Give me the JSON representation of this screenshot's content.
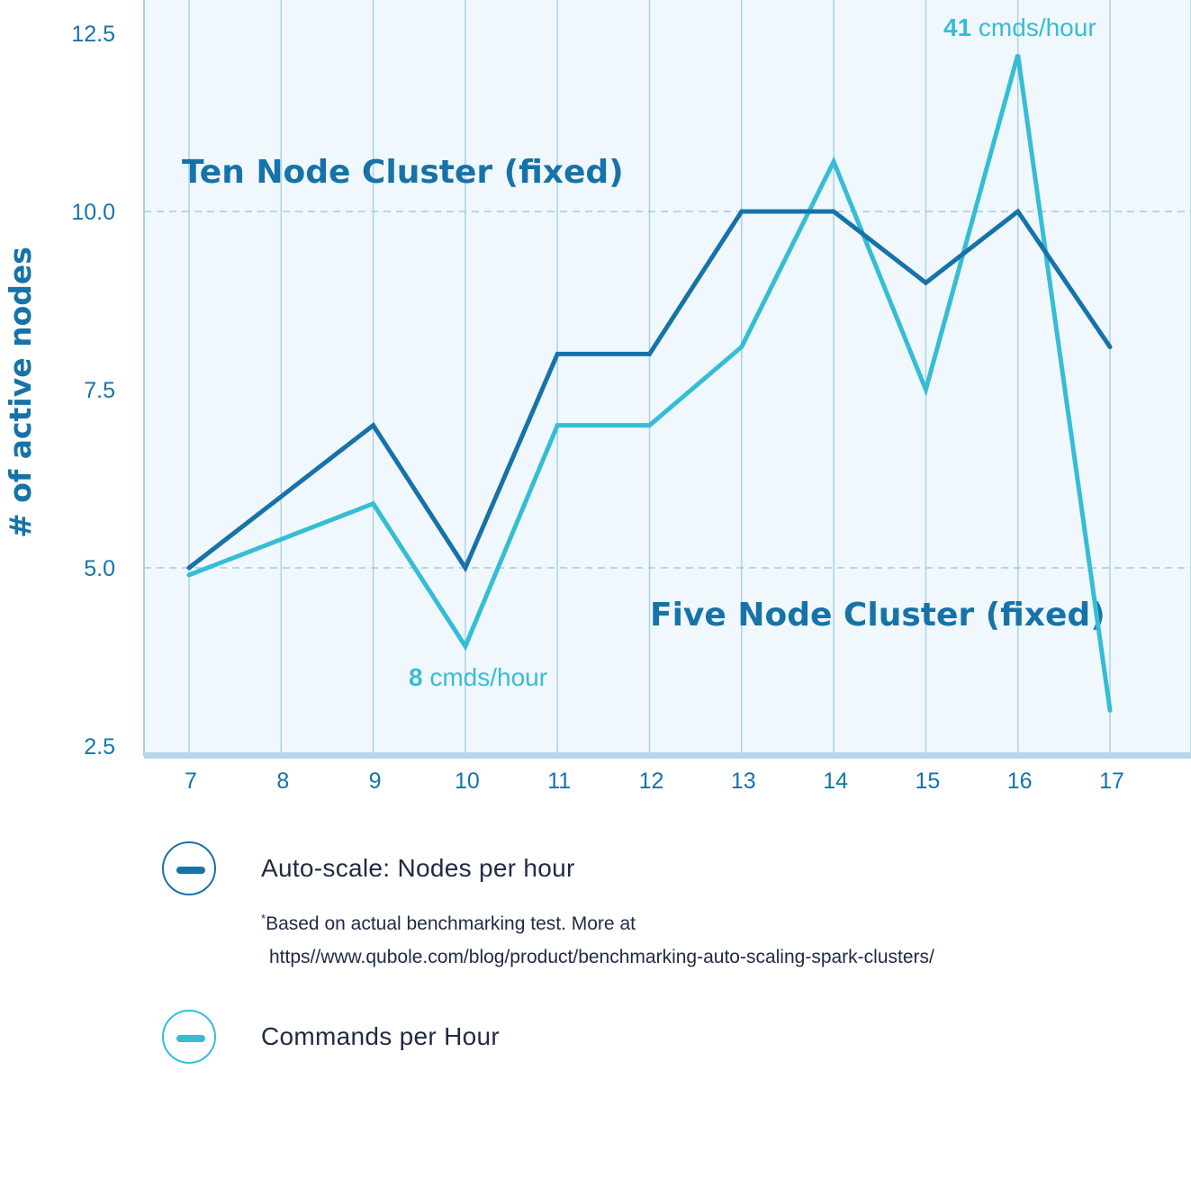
{
  "chart_data": {
    "type": "line",
    "ylabel": "# of active nodes",
    "xlabel": "",
    "title": "",
    "x": [
      7,
      8,
      9,
      10,
      11,
      12,
      13,
      14,
      15,
      16,
      17
    ],
    "x_tick_labels": [
      "7",
      "8",
      "9",
      "10",
      "11",
      "12",
      "13",
      "14",
      "15",
      "16",
      "17"
    ],
    "y_ticks": [
      2.5,
      5.0,
      7.5,
      10.0,
      12.5
    ],
    "y_tick_labels": [
      "2.5",
      "5.0",
      "7.5",
      "10.0",
      "12.5"
    ],
    "ylim": [
      2.4,
      12.9
    ],
    "series": [
      {
        "name": "Auto-scale: Nodes per hour",
        "color": "#1673a9",
        "values": [
          5.0,
          6.0,
          7.0,
          5.0,
          8.0,
          8.0,
          10.0,
          10.0,
          9.0,
          10.0,
          8.1
        ]
      },
      {
        "name": "Commands per Hour",
        "color": "#35bdd6",
        "values": [
          4.9,
          5.4,
          5.9,
          3.9,
          7.0,
          7.0,
          8.1,
          10.7,
          7.5,
          12.2,
          3.0
        ]
      }
    ],
    "bands": [
      {
        "label": "Ten Node Cluster (fixed)",
        "y": 10.0
      },
      {
        "label": "Five Node Cluster (fixed)",
        "y": 5.0
      }
    ],
    "annotations": [
      {
        "number": "41",
        "text": " cmds/hour",
        "series": "Commands per Hour",
        "x": 16
      },
      {
        "number": "8",
        "text": " cmds/hour",
        "series": "Commands per Hour",
        "x": 10
      }
    ],
    "grid": true,
    "legend_position": "bottom"
  },
  "legend": {
    "items": [
      {
        "label": "Auto-scale: Nodes per hour",
        "color": "#1673a9"
      },
      {
        "label": "Commands per Hour",
        "color": "#35bdd6"
      }
    ],
    "footnote_star": "*",
    "footnote_line1": "Based on actual benchmarking test. More at",
    "footnote_line2": "https//www.qubole.com/blog/product/benchmarking-auto-scaling-spark-clusters/"
  }
}
